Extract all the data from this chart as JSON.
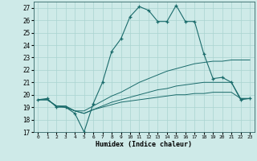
{
  "xlabel": "Humidex (Indice chaleur)",
  "xlim": [
    -0.5,
    23.5
  ],
  "ylim": [
    17,
    27.5
  ],
  "yticks": [
    17,
    18,
    19,
    20,
    21,
    22,
    23,
    24,
    25,
    26,
    27
  ],
  "xticks": [
    0,
    1,
    2,
    3,
    4,
    5,
    6,
    7,
    8,
    9,
    10,
    11,
    12,
    13,
    14,
    15,
    16,
    17,
    18,
    19,
    20,
    21,
    22,
    23
  ],
  "bg_color": "#ceeae8",
  "line_color": "#1a6b6b",
  "grid_color": "#aad4d0",
  "series": [
    {
      "x": [
        0,
        1,
        2,
        3,
        4,
        5,
        6,
        7,
        8,
        9,
        10,
        11,
        12,
        13,
        14,
        15,
        16,
        17,
        18,
        19,
        20,
        21,
        22,
        23
      ],
      "y": [
        19.6,
        19.7,
        19.0,
        19.0,
        18.5,
        17.0,
        19.3,
        21.0,
        23.5,
        24.5,
        26.3,
        27.1,
        26.8,
        25.9,
        25.9,
        27.2,
        25.9,
        25.9,
        23.3,
        21.3,
        21.4,
        21.0,
        19.6,
        19.7
      ],
      "marker": true
    },
    {
      "x": [
        0,
        1,
        2,
        3,
        4,
        5,
        6,
        7,
        8,
        9,
        10,
        11,
        12,
        13,
        14,
        15,
        16,
        17,
        18,
        19,
        20,
        21,
        22,
        23
      ],
      "y": [
        19.6,
        19.6,
        19.1,
        19.1,
        18.7,
        18.7,
        19.1,
        19.5,
        19.9,
        20.2,
        20.6,
        21.0,
        21.3,
        21.6,
        21.9,
        22.1,
        22.3,
        22.5,
        22.6,
        22.7,
        22.7,
        22.8,
        22.8,
        22.8
      ],
      "marker": false
    },
    {
      "x": [
        0,
        1,
        2,
        3,
        4,
        5,
        6,
        7,
        8,
        9,
        10,
        11,
        12,
        13,
        14,
        15,
        16,
        17,
        18,
        19,
        20,
        21,
        22,
        23
      ],
      "y": [
        19.6,
        19.6,
        19.1,
        19.0,
        18.7,
        18.5,
        18.8,
        19.1,
        19.4,
        19.6,
        19.8,
        20.0,
        20.2,
        20.4,
        20.5,
        20.7,
        20.8,
        20.9,
        21.0,
        21.0,
        21.0,
        21.0,
        19.7,
        19.7
      ],
      "marker": false
    },
    {
      "x": [
        0,
        1,
        2,
        3,
        4,
        5,
        6,
        7,
        8,
        9,
        10,
        11,
        12,
        13,
        14,
        15,
        16,
        17,
        18,
        19,
        20,
        21,
        22,
        23
      ],
      "y": [
        19.6,
        19.6,
        19.1,
        19.0,
        18.7,
        18.5,
        18.8,
        19.0,
        19.2,
        19.4,
        19.5,
        19.6,
        19.7,
        19.8,
        19.9,
        20.0,
        20.0,
        20.1,
        20.1,
        20.2,
        20.2,
        20.2,
        19.7,
        19.7
      ],
      "marker": false
    }
  ]
}
